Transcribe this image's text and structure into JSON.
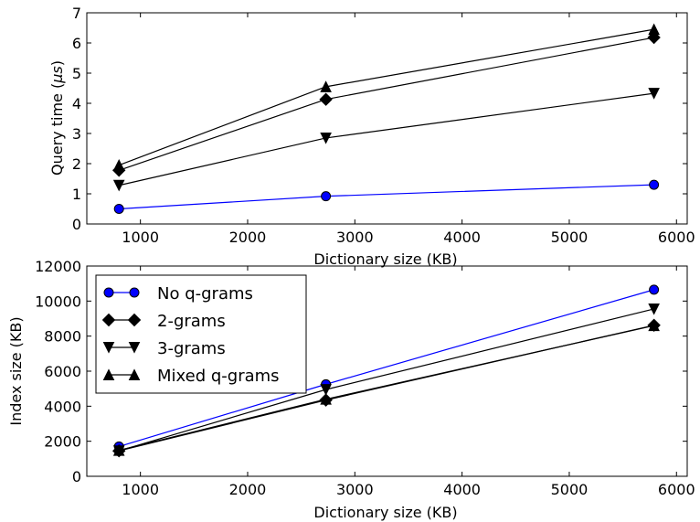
{
  "chart_data": [
    {
      "type": "line",
      "title": "",
      "xlabel": "Dictionary size (KB)",
      "ylabel_prefix": "Query time (",
      "ylabel_unit": "μs",
      "ylabel_suffix": ")",
      "xlim": [
        500,
        6100
      ],
      "ylim": [
        0,
        7
      ],
      "xticks": [
        1000,
        2000,
        3000,
        4000,
        5000,
        6000
      ],
      "yticks": [
        0,
        1,
        2,
        3,
        4,
        5,
        6,
        7
      ],
      "x": [
        800,
        2730,
        5790
      ],
      "series": [
        {
          "name": "No q-grams",
          "marker": "circle",
          "color": "#0000ff",
          "values": [
            0.5,
            0.92,
            1.3
          ]
        },
        {
          "name": "2-grams",
          "marker": "diamond",
          "color": "#000000",
          "values": [
            1.78,
            4.13,
            6.18
          ]
        },
        {
          "name": "3-grams",
          "marker": "triangle-down",
          "color": "#000000",
          "values": [
            1.28,
            2.85,
            4.33
          ]
        },
        {
          "name": "Mixed q-grams",
          "marker": "triangle-up",
          "color": "#000000",
          "values": [
            1.95,
            4.55,
            6.45
          ]
        }
      ],
      "legend": "none"
    },
    {
      "type": "line",
      "title": "",
      "xlabel": "Dictionary size (KB)",
      "ylabel": "Index size (KB)",
      "xlim": [
        500,
        6100
      ],
      "ylim": [
        0,
        12000
      ],
      "xticks": [
        1000,
        2000,
        3000,
        4000,
        5000,
        6000
      ],
      "yticks": [
        0,
        2000,
        4000,
        6000,
        8000,
        10000,
        12000
      ],
      "x": [
        800,
        2730,
        5790
      ],
      "series": [
        {
          "name": "No q-grams",
          "marker": "circle",
          "color": "#0000ff",
          "values": [
            1700,
            5250,
            10650
          ]
        },
        {
          "name": "2-grams",
          "marker": "diamond",
          "color": "#000000",
          "values": [
            1450,
            4350,
            8620
          ]
        },
        {
          "name": "3-grams",
          "marker": "triangle-down",
          "color": "#000000",
          "values": [
            1450,
            4950,
            9550
          ]
        },
        {
          "name": "Mixed q-grams",
          "marker": "triangle-up",
          "color": "#000000",
          "values": [
            1480,
            4400,
            8600
          ]
        }
      ],
      "legend": "top-left"
    }
  ]
}
